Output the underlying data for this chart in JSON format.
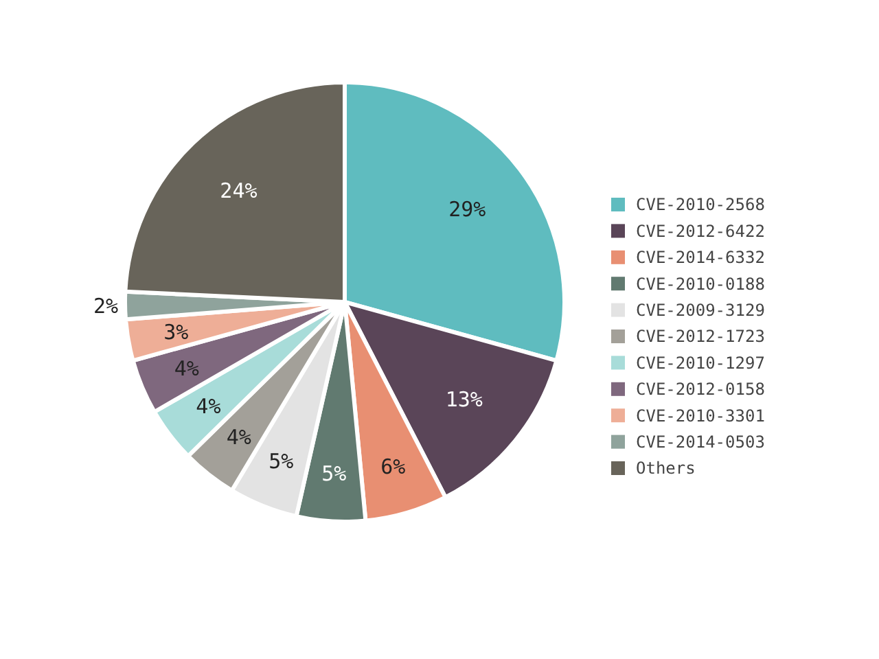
{
  "chart_data": {
    "type": "pie",
    "categories": [
      "CVE-2010-2568",
      "CVE-2012-6422",
      "CVE-2014-6332",
      "CVE-2010-0188",
      "CVE-2009-3129",
      "CVE-2012-1723",
      "CVE-2010-1297",
      "CVE-2012-0158",
      "CVE-2010-3301",
      "CVE-2014-0503",
      "Others"
    ],
    "values": [
      29,
      13,
      6,
      5,
      5,
      4,
      4,
      4,
      3,
      2,
      24
    ],
    "colors": [
      "#5fbcbf",
      "#5a4558",
      "#e88f72",
      "#617a70",
      "#e3e3e3",
      "#a3a099",
      "#a8dcd9",
      "#7f687e",
      "#eeae97",
      "#8fa39c",
      "#68645a"
    ],
    "value_labels": [
      "29%",
      "13%",
      "6%",
      "5%",
      "5%",
      "4%",
      "4%",
      "4%",
      "3%",
      "2%",
      "24%"
    ],
    "legend": "right"
  }
}
